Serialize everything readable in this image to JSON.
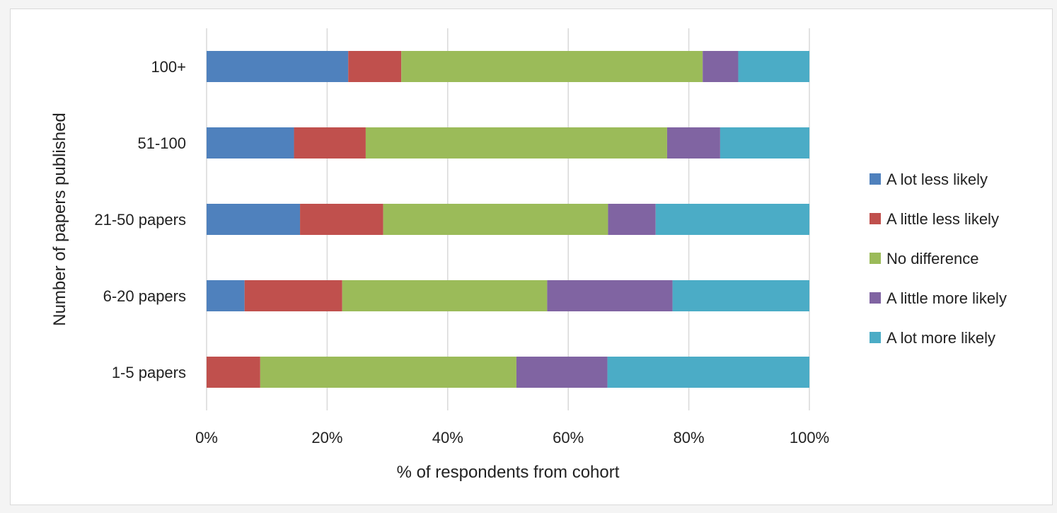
{
  "chart_data": {
    "type": "bar",
    "orientation": "horizontal",
    "stacked": "percent",
    "categories": [
      "100+",
      "51-100",
      "21-50 papers",
      "6-20 papers",
      "1-5 papers"
    ],
    "series": [
      {
        "name": "A lot less likely",
        "color": "#4f81bd",
        "values": [
          23.5,
          14.5,
          15.5,
          6.3,
          0
        ]
      },
      {
        "name": "A little less likely",
        "color": "#c0504d",
        "values": [
          8.8,
          11.9,
          13.8,
          16.2,
          8.9
        ]
      },
      {
        "name": "No difference",
        "color": "#9bbb59",
        "values": [
          50.0,
          50.0,
          37.3,
          34.0,
          42.5
        ]
      },
      {
        "name": "A little more likely",
        "color": "#8064a2",
        "values": [
          5.9,
          8.8,
          7.9,
          20.8,
          15.1
        ]
      },
      {
        "name": "A lot more likely",
        "color": "#4bacc6",
        "values": [
          11.8,
          14.8,
          25.5,
          22.7,
          33.5
        ]
      }
    ],
    "x_ticks": [
      "0%",
      "20%",
      "40%",
      "60%",
      "80%",
      "100%"
    ],
    "xlim": [
      0,
      100
    ],
    "xlabel": "% of respondents from cohort",
    "ylabel": "Number of papers published",
    "grid": "vertical",
    "legend_position": "right"
  }
}
